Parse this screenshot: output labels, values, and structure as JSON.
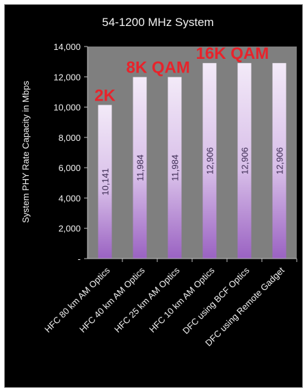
{
  "chart_data": {
    "type": "bar",
    "title": "54-1200 MHz System",
    "xlabel": "",
    "ylabel": "System PHY Rate Capacity in Mbps",
    "ylim": [
      0,
      14000
    ],
    "yticks": [
      0,
      2000,
      4000,
      6000,
      8000,
      10000,
      12000,
      14000
    ],
    "ytick_labels": [
      "-",
      "2,000",
      "4,000",
      "6,000",
      "8,000",
      "10,000",
      "12,000",
      "14,000"
    ],
    "categories": [
      "HFC 80 km AM Optics",
      "HFC 40 km AM Optics",
      "HFC 25 km AM Optics",
      "HFC 10 km AM Optics",
      "DFC using BCF Optics",
      "DFC using Remote Gadget"
    ],
    "values": [
      10141,
      11984,
      11984,
      12906,
      12906,
      12906
    ],
    "value_labels": [
      "10,141",
      "11,984",
      "11,984",
      "12,906",
      "12,906",
      "12,906"
    ],
    "annotations": [
      {
        "text": "2K",
        "category_index": 0
      },
      {
        "text": "8K QAM",
        "category_index": 1
      },
      {
        "text": "16K QAM",
        "category_index": 3
      }
    ],
    "grid": false,
    "colors": {
      "background": "#000000",
      "plot_area": "#7f7f7f",
      "bar_top": "#f3eaf8",
      "bar_bottom": "#9a62c2",
      "annotation": "#e8232b",
      "text": "#f2f2f2"
    }
  }
}
